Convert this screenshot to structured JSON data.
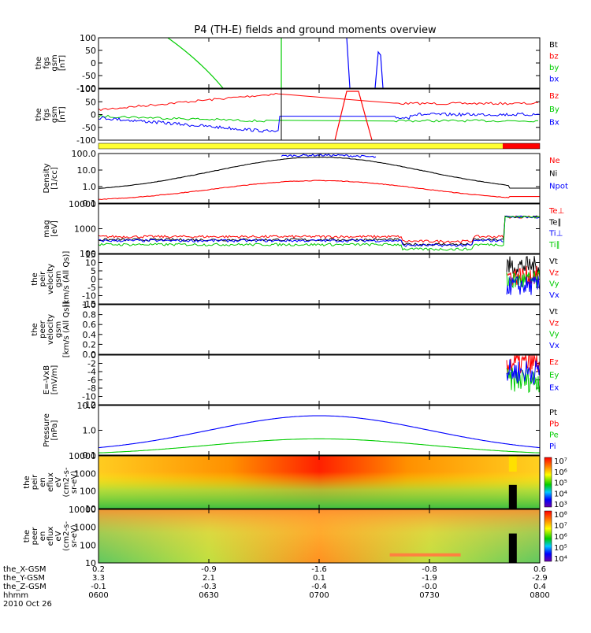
{
  "title": "P4 (TH-E) fields and ground moments overview",
  "date": "2010 Oct 26",
  "time_axis": {
    "row_labels": [
      "the_X-GSM",
      "the_Y-GSM",
      "the_Z-GSM",
      "hhmm"
    ],
    "ticks": [
      {
        "x": "0.2",
        "y": "3.3",
        "z": "-0.1",
        "t": "0600"
      },
      {
        "x": "-0.9",
        "y": "2.1",
        "z": "-0.3",
        "t": "0630"
      },
      {
        "x": "-1.6",
        "y": "0.1",
        "z": "-0.4",
        "t": "0700"
      },
      {
        "x": "-0.8",
        "y": "-1.9",
        "z": "-0.0",
        "t": "0730"
      },
      {
        "x": "0.6",
        "y": "-2.9",
        "z": "0.4",
        "t": "0800"
      }
    ]
  },
  "chart_data": [
    {
      "type": "line",
      "id": "fgs",
      "ylabel": [
        "the",
        "fgs",
        "gsm",
        "[nT]"
      ],
      "ylim": [
        -100,
        100
      ],
      "yticks": [
        "100",
        "50",
        "0",
        "-50",
        "-100"
      ],
      "legend": [
        {
          "name": "Bt",
          "color": "#000000"
        },
        {
          "name": "bz",
          "color": "#ff0000"
        },
        {
          "name": "by",
          "color": "#00cc00"
        },
        {
          "name": "bx",
          "color": "#0000ff"
        }
      ]
    },
    {
      "type": "line",
      "id": "fgs_bz",
      "ylabel": [
        "the",
        "fgs",
        "gsm",
        "[nT]"
      ],
      "ylim": [
        -100,
        100
      ],
      "yticks": [
        "100",
        "50",
        "0",
        "-50",
        "-100"
      ],
      "legend": [
        {
          "name": "Bz",
          "color": "#ff0000"
        },
        {
          "name": "By",
          "color": "#00cc00"
        },
        {
          "name": "Bx",
          "color": "#0000ff"
        }
      ]
    },
    {
      "type": "line",
      "id": "density",
      "scale": "log",
      "ylabel": [
        "Density",
        "[1/cc]"
      ],
      "ylim": [
        0.1,
        100
      ],
      "yticks": [
        "100.0",
        "10.0",
        "1.0",
        "0.1"
      ],
      "legend": [
        {
          "name": "Ne",
          "color": "#ff0000"
        },
        {
          "name": "Ni",
          "color": "#000000"
        },
        {
          "name": "Npot",
          "color": "#0000ff"
        }
      ]
    },
    {
      "type": "line",
      "id": "temp",
      "scale": "log",
      "ylabel": [
        "mag",
        "[eV]"
      ],
      "ylim": [
        100,
        10000
      ],
      "yticks": [
        "10000",
        "1000",
        "100"
      ],
      "legend": [
        {
          "name": "Te⊥",
          "color": "#ff0000"
        },
        {
          "name": "Te∥",
          "color": "#000000"
        },
        {
          "name": "Ti⊥",
          "color": "#0000ff"
        },
        {
          "name": "Ti∥",
          "color": "#00cc00"
        }
      ]
    },
    {
      "type": "line",
      "id": "peir_vel",
      "ylabel": [
        "the",
        "peir",
        "velocity",
        "gsm",
        "[km/s (All Qs)]"
      ],
      "ylim": [
        -15,
        15
      ],
      "yticks": [
        "15",
        "10",
        "5",
        "0",
        "-5",
        "-10",
        "-15"
      ],
      "legend": [
        {
          "name": "Vt",
          "color": "#000000"
        },
        {
          "name": "Vz",
          "color": "#ff0000"
        },
        {
          "name": "Vy",
          "color": "#00cc00"
        },
        {
          "name": "Vx",
          "color": "#0000ff"
        }
      ]
    },
    {
      "type": "line",
      "id": "peer_vel",
      "ylabel": [
        "the",
        "peer",
        "velocity",
        "gsm",
        "[km/s (All Qs)]"
      ],
      "ylim": [
        0,
        1
      ],
      "yticks": [
        "1.0",
        "0.8",
        "0.6",
        "0.4",
        "0.2",
        "0.0"
      ],
      "legend": [
        {
          "name": "Vt",
          "color": "#000000"
        },
        {
          "name": "Vz",
          "color": "#ff0000"
        },
        {
          "name": "Vy",
          "color": "#00cc00"
        },
        {
          "name": "Vx",
          "color": "#0000ff"
        }
      ]
    },
    {
      "type": "line",
      "id": "efield",
      "ylabel": [
        "E=-VxB",
        "[mV/m]"
      ],
      "ylim": [
        -12,
        0
      ],
      "yticks": [
        "0",
        "-2",
        "-4",
        "-6",
        "-8",
        "-10",
        "-12"
      ],
      "legend": [
        {
          "name": "Ez",
          "color": "#ff0000"
        },
        {
          "name": "Ey",
          "color": "#00cc00"
        },
        {
          "name": "Ex",
          "color": "#0000ff"
        }
      ]
    },
    {
      "type": "line",
      "id": "pressure",
      "scale": "log",
      "ylabel": [
        "Pressure",
        "[nPa]"
      ],
      "ylim": [
        0.03,
        10
      ],
      "yticks": [
        "10.0",
        "1.0",
        "0.1"
      ],
      "legend": [
        {
          "name": "Pt",
          "color": "#000000"
        },
        {
          "name": "Pb",
          "color": "#ff0000"
        },
        {
          "name": "Pe",
          "color": "#00cc00"
        },
        {
          "name": "Pi",
          "color": "#0000ff"
        }
      ]
    },
    {
      "type": "heatmap",
      "id": "peir_spec",
      "scale": "log",
      "ylabel": [
        "the",
        "peir",
        "en",
        "eflux",
        "eV",
        "(cm2-s-",
        "sr-eV)"
      ],
      "ylim": [
        10,
        10000
      ],
      "yticks": [
        "10000",
        "1000",
        "100",
        "10"
      ],
      "colorbar": [
        "10⁷",
        "10⁶",
        "10⁵",
        "10⁴",
        "10³"
      ]
    },
    {
      "type": "heatmap",
      "id": "peer_spec",
      "scale": "log",
      "ylabel": [
        "the",
        "peer",
        "en",
        "eflux",
        "eV",
        "(cm2-s-",
        "sr-eV)"
      ],
      "ylim": [
        10,
        10000
      ],
      "yticks": [
        "10000",
        "1000",
        "100",
        "10"
      ],
      "colorbar": [
        "10⁸",
        "10⁷",
        "10⁶",
        "10⁵",
        "10⁴"
      ]
    }
  ]
}
